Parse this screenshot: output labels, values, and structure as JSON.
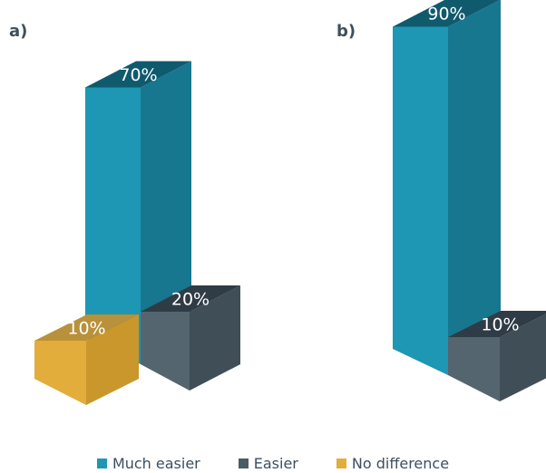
{
  "chart_data": [
    {
      "type": "bar",
      "panel": "a)",
      "categories": [
        "Much easier",
        "Easier",
        "No difference"
      ],
      "values": [
        70,
        20,
        10
      ],
      "value_labels": [
        "70%",
        "20%",
        "10%"
      ],
      "ylim": [
        0,
        100
      ]
    },
    {
      "type": "bar",
      "panel": "b)",
      "categories": [
        "Much easier",
        "Easier",
        "No difference"
      ],
      "values": [
        90,
        10,
        0
      ],
      "value_labels": [
        "90%",
        "10%",
        ""
      ],
      "ylim": [
        0,
        100
      ]
    }
  ],
  "legend": [
    {
      "label": "Much easier",
      "color": "#1d97b3"
    },
    {
      "label": "Easier",
      "color": "#4a5c66"
    },
    {
      "label": "No difference",
      "color": "#e2ad3b"
    }
  ],
  "colors": {
    "much_easier": {
      "front": "#1d97b3",
      "side": "#17778f",
      "top": "#105a6e"
    },
    "easier": {
      "front": "#54656f",
      "side": "#3f4e57",
      "top": "#2f3c45"
    },
    "no_difference": {
      "front": "#e2ad3b",
      "side": "#c9972c",
      "top": "#b8913a"
    }
  }
}
